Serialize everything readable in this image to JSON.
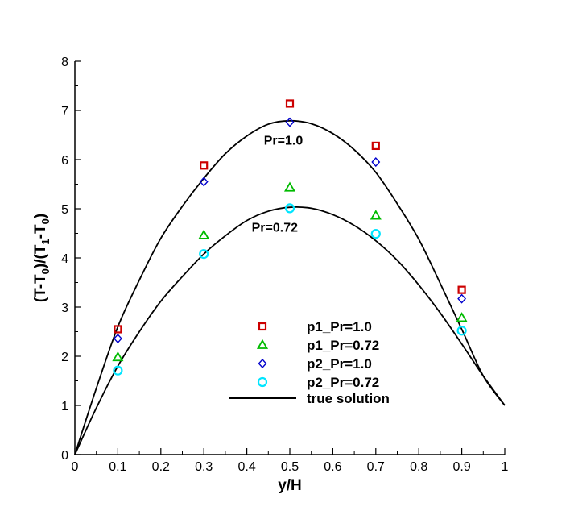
{
  "chart_data": {
    "type": "scatter",
    "xlabel": "y/H",
    "ylabel": "(T-T0)/(T1-T0)",
    "ylabel_parts": [
      "(T-T",
      "0",
      ")/(T",
      "1",
      "-T",
      "0",
      ")"
    ],
    "xlim": [
      0,
      1
    ],
    "ylim": [
      0,
      8
    ],
    "x_ticks": [
      0,
      0.1,
      0.2,
      0.3,
      0.4,
      0.5,
      0.6,
      0.7,
      0.8,
      0.9,
      1
    ],
    "x_tick_labels": [
      "0",
      "0.1",
      "0.2",
      "0.3",
      "0.4",
      "0.5",
      "0.6",
      "0.7",
      "0.8",
      "0.9",
      "1"
    ],
    "y_ticks": [
      0,
      1,
      2,
      3,
      4,
      5,
      6,
      7,
      8
    ],
    "y_tick_labels": [
      "0",
      "1",
      "2",
      "3",
      "4",
      "5",
      "6",
      "7",
      "8"
    ],
    "grid": false,
    "legend_position": "lower-center",
    "series": [
      {
        "name": "p1_Pr=1.0",
        "marker": "square",
        "color": "#cc0000",
        "x": [
          0.1,
          0.3,
          0.5,
          0.7,
          0.9
        ],
        "y": [
          2.55,
          5.88,
          7.14,
          6.28,
          3.35
        ]
      },
      {
        "name": "p1_Pr=0.72",
        "marker": "triangle",
        "color": "#00bb00",
        "x": [
          0.1,
          0.3,
          0.5,
          0.7,
          0.9
        ],
        "y": [
          1.98,
          4.46,
          5.43,
          4.86,
          2.78
        ]
      },
      {
        "name": "p2_Pr=1.0",
        "marker": "diamond",
        "color": "#0000cc",
        "x": [
          0.1,
          0.3,
          0.5,
          0.7,
          0.9
        ],
        "y": [
          2.36,
          5.55,
          6.76,
          5.95,
          3.17
        ]
      },
      {
        "name": "p2_Pr=0.72",
        "marker": "circle",
        "color": "#00e5ff",
        "x": [
          0.1,
          0.3,
          0.5,
          0.7,
          0.9
        ],
        "y": [
          1.71,
          4.08,
          5.01,
          4.49,
          2.52
        ]
      }
    ],
    "curves": [
      {
        "name": "true solution",
        "color": "#000000",
        "label": "Pr=1.0",
        "x": [
          0,
          0.05,
          0.1,
          0.15,
          0.2,
          0.25,
          0.3,
          0.35,
          0.4,
          0.45,
          0.5,
          0.55,
          0.6,
          0.65,
          0.7,
          0.75,
          0.8,
          0.85,
          0.9,
          0.95,
          1
        ],
        "y": [
          0,
          1.35,
          2.6,
          3.55,
          4.4,
          5.05,
          5.62,
          6.12,
          6.48,
          6.72,
          6.79,
          6.73,
          6.53,
          6.2,
          5.74,
          5.1,
          4.38,
          3.48,
          2.55,
          1.6,
          1
        ]
      },
      {
        "name": "true solution Pr=0.72",
        "color": "#000000",
        "label": "Pr=0.72",
        "x": [
          0,
          0.05,
          0.1,
          0.15,
          0.2,
          0.25,
          0.3,
          0.35,
          0.4,
          0.45,
          0.5,
          0.55,
          0.6,
          0.65,
          0.7,
          0.75,
          0.8,
          0.85,
          0.9,
          0.95,
          1
        ],
        "y": [
          0,
          0.95,
          1.8,
          2.5,
          3.12,
          3.62,
          4.08,
          4.45,
          4.76,
          4.95,
          5.03,
          5.01,
          4.88,
          4.66,
          4.35,
          3.95,
          3.45,
          2.88,
          2.25,
          1.6,
          1
        ]
      }
    ],
    "annotations": [
      {
        "text": "Pr=1.0",
        "x": 0.485,
        "y": 6.3
      },
      {
        "text": "Pr=0.72",
        "x": 0.465,
        "y": 4.53
      }
    ],
    "legend": {
      "entries": [
        "p1_Pr=1.0",
        "p1_Pr=0.72",
        "p2_Pr=1.0",
        "p2_Pr=0.72",
        "true solution"
      ]
    }
  }
}
